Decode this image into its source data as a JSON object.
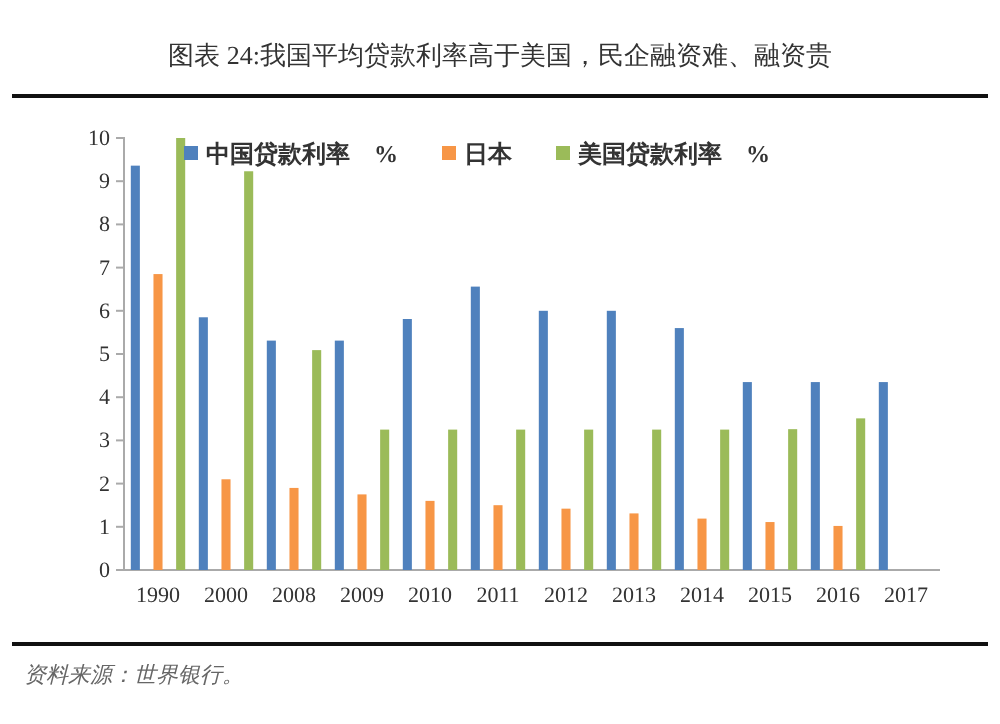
{
  "chart_data": {
    "type": "bar",
    "title": "图表 24:我国平均贷款利率高于美国，民企融资难、融资贵",
    "categories": [
      "1990",
      "2000",
      "2008",
      "2009",
      "2010",
      "2011",
      "2012",
      "2013",
      "2014",
      "2015",
      "2016",
      "2017"
    ],
    "series": [
      {
        "name": "中国贷款利率　%",
        "color": "#4f81bd",
        "values": [
          9.36,
          5.85,
          5.31,
          5.31,
          5.81,
          6.56,
          6.0,
          6.0,
          5.6,
          4.35,
          4.35,
          4.35
        ]
      },
      {
        "name": "日本",
        "color": "#f79646",
        "values": [
          6.85,
          2.1,
          1.9,
          1.75,
          1.6,
          1.5,
          1.42,
          1.31,
          1.19,
          1.11,
          1.02,
          null
        ]
      },
      {
        "name": "美国贷款利率　%",
        "color": "#9bbb59",
        "values": [
          10.0,
          9.23,
          5.09,
          3.25,
          3.25,
          3.25,
          3.25,
          3.25,
          3.25,
          3.26,
          3.51,
          null
        ]
      }
    ],
    "ylim": [
      0,
      10
    ],
    "yticks": [
      0,
      1,
      2,
      3,
      4,
      5,
      6,
      7,
      8,
      9,
      10
    ],
    "grid": false,
    "legend": "top",
    "annotations": [
      "资料来源：世界银行。"
    ]
  }
}
